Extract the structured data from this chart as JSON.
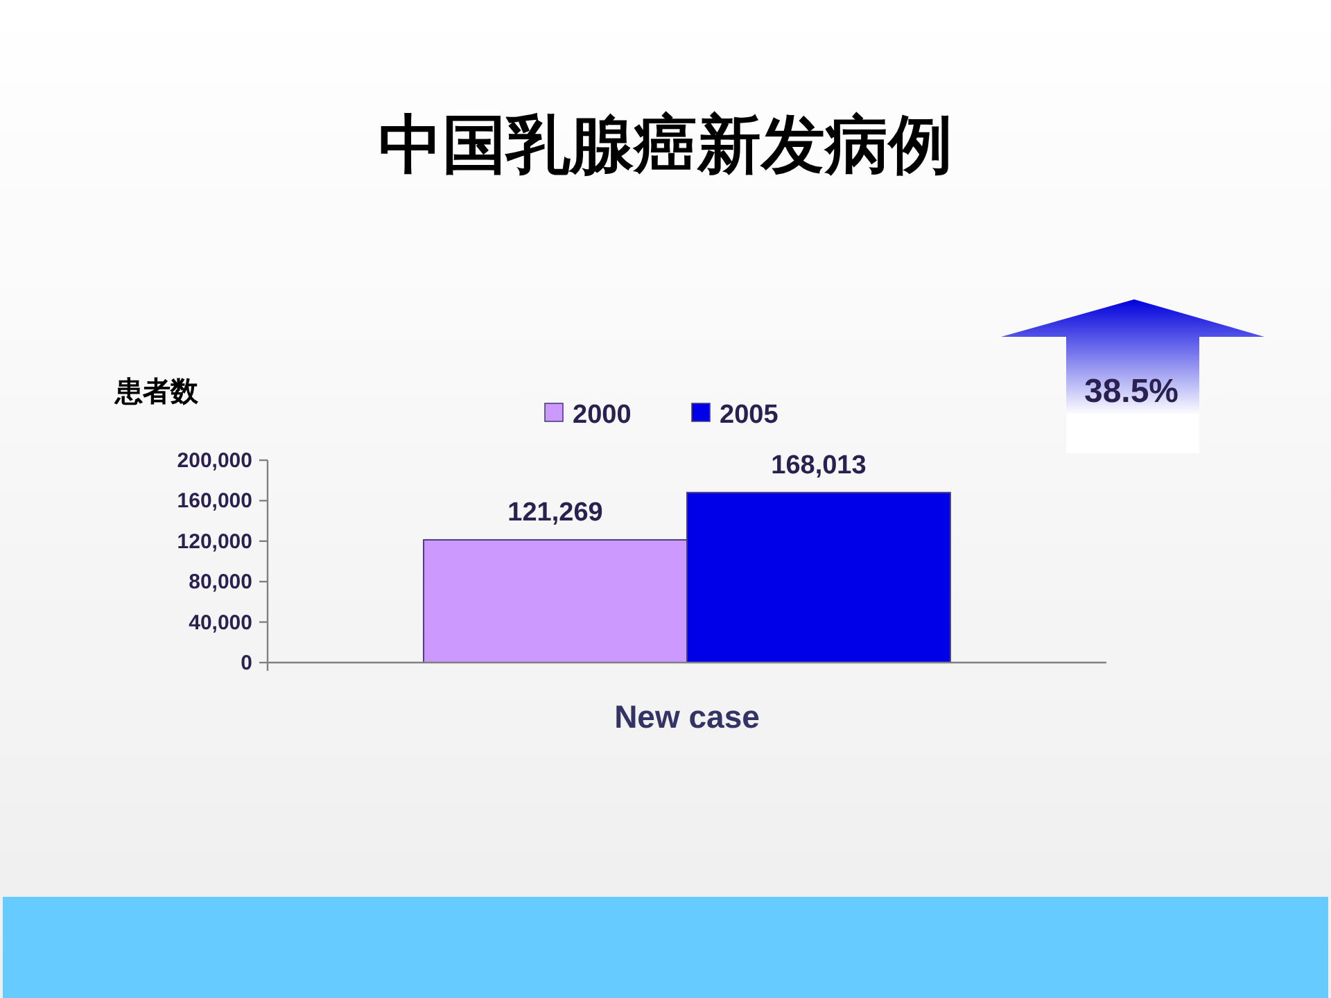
{
  "chart_data": {
    "type": "bar",
    "title": "中国乳腺癌新发病例",
    "ylabel": "患者数",
    "categories": [
      "New case"
    ],
    "series": [
      {
        "name": "2000",
        "color": "#cc99ff",
        "values": [
          121269
        ],
        "value_labels": [
          "121,269"
        ]
      },
      {
        "name": "2005",
        "color": "#0000e8",
        "values": [
          168013
        ],
        "value_labels": [
          "168,013"
        ]
      }
    ],
    "ylim": [
      0,
      200000
    ],
    "yticks": [
      0,
      {
        "value": 40000,
        "label": "40,000"
      },
      {
        "value": 80000,
        "label": "80,000"
      },
      {
        "value": 120000,
        "label": "120,000"
      },
      {
        "value": 160000,
        "label": "160,000"
      },
      {
        "value": 200000,
        "label": "200,000"
      }
    ],
    "legend": "top",
    "annotations": [
      "38.5%"
    ]
  }
}
